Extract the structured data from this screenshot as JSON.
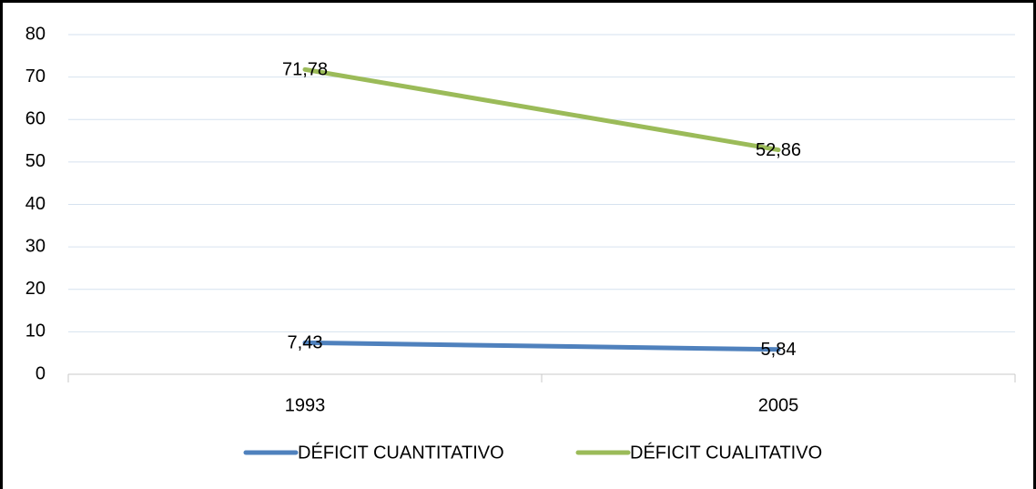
{
  "chart_data": {
    "type": "line",
    "categories": [
      "1993",
      "2005"
    ],
    "series": [
      {
        "name": "DÉFICIT CUANTITATIVO",
        "color": "#4f81bd",
        "values": [
          7.43,
          5.84
        ],
        "value_labels": [
          "7,43",
          "5,84"
        ]
      },
      {
        "name": "DÉFICIT CUALITATIVO",
        "color": "#9bbb59",
        "values": [
          71.78,
          52.86
        ],
        "value_labels": [
          "71,78",
          "52,86"
        ]
      }
    ],
    "ylim": [
      0,
      80
    ],
    "yticks": [
      0,
      10,
      20,
      30,
      40,
      50,
      60,
      70,
      80
    ],
    "grid": true,
    "legend": "bottom"
  }
}
